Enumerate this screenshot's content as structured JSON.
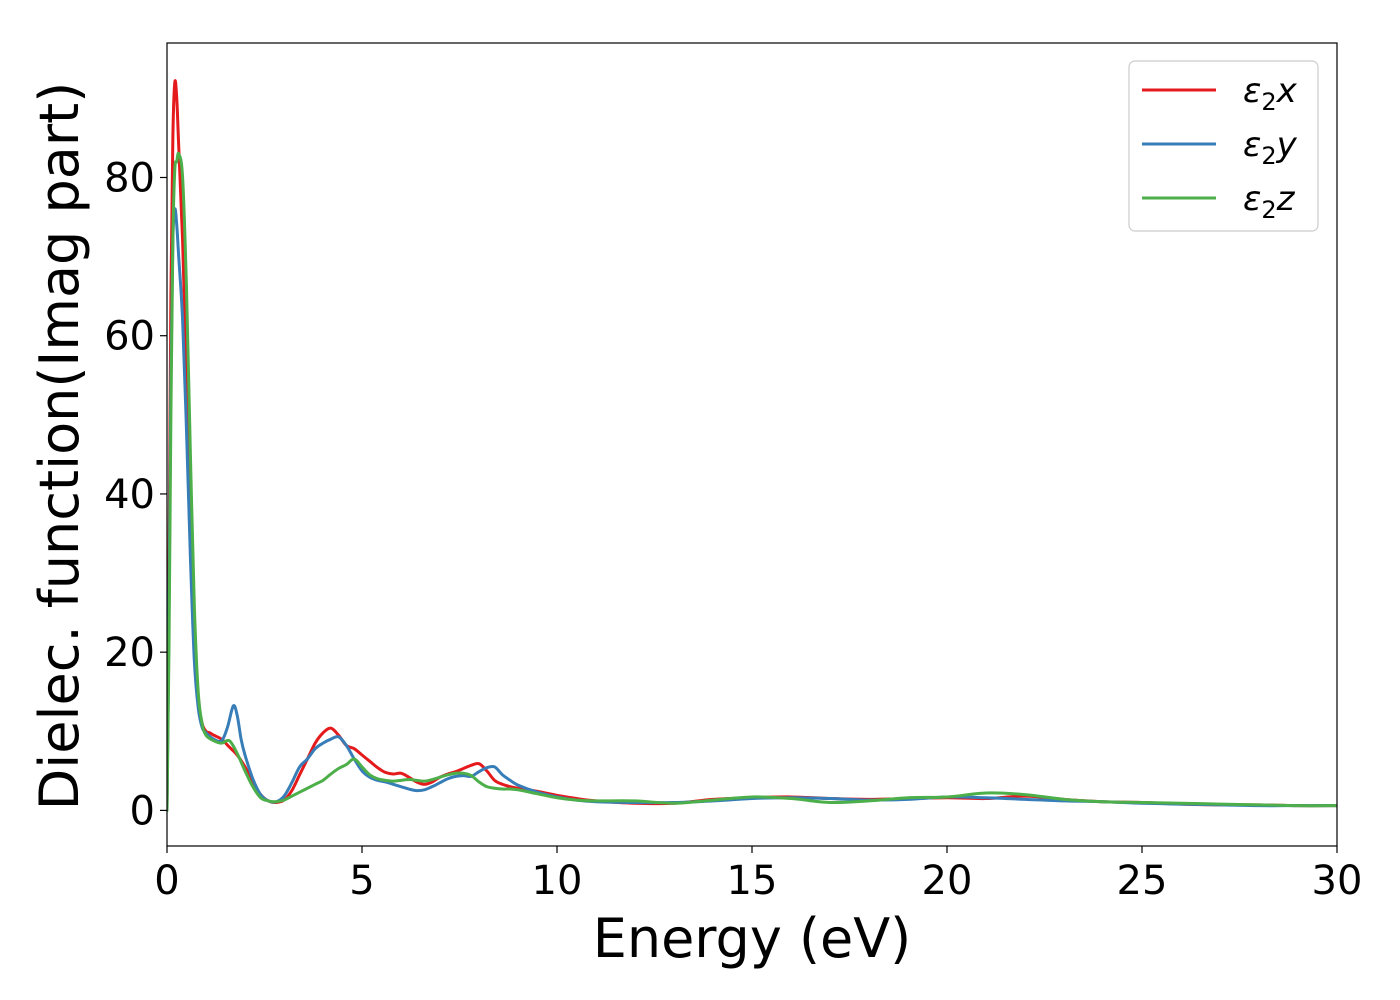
{
  "chart_data": {
    "type": "line",
    "title": "",
    "xlabel": "Energy (eV)",
    "ylabel": "Dielec. function(Imag part)",
    "xlim": [
      0,
      30
    ],
    "ylim": [
      -4.5,
      97
    ],
    "xticks": [
      0,
      5,
      10,
      15,
      20,
      25,
      30
    ],
    "yticks": [
      0,
      20,
      40,
      60,
      80
    ],
    "grid": false,
    "legend_position": "top-right",
    "series": [
      {
        "name": "ε2x",
        "symbol": "ε",
        "sub": "2",
        "axis": "x",
        "color": "#e41a1c",
        "x": [
          0,
          0.05,
          0.1,
          0.15,
          0.2,
          0.25,
          0.3,
          0.4,
          0.5,
          0.6,
          0.7,
          0.8,
          0.9,
          1.0,
          1.1,
          1.2,
          1.4,
          1.6,
          1.8,
          2.0,
          2.2,
          2.4,
          2.6,
          2.8,
          3.0,
          3.2,
          3.4,
          3.6,
          3.8,
          4.0,
          4.2,
          4.4,
          4.6,
          4.8,
          5.0,
          5.2,
          5.4,
          5.6,
          5.8,
          6.0,
          6.2,
          6.4,
          6.6,
          6.8,
          7.0,
          7.2,
          7.4,
          7.6,
          7.8,
          8.0,
          8.2,
          8.4,
          8.6,
          8.8,
          9.0,
          9.5,
          10.0,
          10.5,
          11.0,
          12.0,
          13.0,
          14.0,
          15.0,
          16.0,
          17.0,
          18.0,
          19.0,
          20.0,
          21.0,
          22.0,
          23.0,
          24.0,
          25.0,
          26.0,
          27.0,
          28.0,
          29.0,
          30.0
        ],
        "y": [
          0,
          30,
          65,
          85,
          92,
          90,
          84,
          72,
          55,
          36,
          21,
          14,
          11,
          10,
          9.8,
          9.5,
          9.0,
          8.0,
          7.0,
          5.5,
          3.5,
          2.0,
          1.2,
          1.0,
          1.3,
          2.5,
          4.5,
          6.5,
          8.5,
          9.8,
          10.4,
          9.5,
          8.2,
          7.8,
          7.0,
          6.2,
          5.4,
          4.8,
          4.6,
          4.7,
          4.2,
          3.6,
          3.3,
          3.6,
          4.2,
          4.6,
          4.9,
          5.3,
          5.7,
          5.9,
          5.0,
          3.8,
          3.3,
          3.0,
          2.8,
          2.4,
          1.9,
          1.5,
          1.2,
          0.9,
          0.9,
          1.4,
          1.6,
          1.7,
          1.5,
          1.4,
          1.5,
          1.6,
          1.5,
          1.8,
          1.4,
          1.1,
          1.0,
          0.8,
          0.7,
          0.7,
          0.6,
          0.6
        ]
      },
      {
        "name": "ε2y",
        "symbol": "ε",
        "sub": "2",
        "axis": "y",
        "color": "#377eb8",
        "x": [
          0,
          0.05,
          0.1,
          0.15,
          0.2,
          0.25,
          0.3,
          0.4,
          0.5,
          0.6,
          0.7,
          0.8,
          0.9,
          1.0,
          1.2,
          1.4,
          1.55,
          1.7,
          1.8,
          1.9,
          2.0,
          2.2,
          2.4,
          2.6,
          2.8,
          3.0,
          3.2,
          3.4,
          3.6,
          3.8,
          4.0,
          4.2,
          4.4,
          4.6,
          4.8,
          5.0,
          5.2,
          5.4,
          5.6,
          5.8,
          6.0,
          6.2,
          6.4,
          6.6,
          6.8,
          7.0,
          7.2,
          7.4,
          7.6,
          7.8,
          8.0,
          8.2,
          8.4,
          8.6,
          8.8,
          9.0,
          9.5,
          10.0,
          10.5,
          11.0,
          12.0,
          13.0,
          14.0,
          15.0,
          16.0,
          17.0,
          18.0,
          19.0,
          20.0,
          21.0,
          22.0,
          23.0,
          24.0,
          25.0,
          26.0,
          27.0,
          28.0,
          29.0,
          30.0
        ],
        "y": [
          0,
          25,
          55,
          72,
          76,
          74,
          70,
          62,
          48,
          32,
          19,
          13,
          10.5,
          9.8,
          9.0,
          8.8,
          10.5,
          13.2,
          12.0,
          9.0,
          7.0,
          4.0,
          2.0,
          1.2,
          1.1,
          1.8,
          3.5,
          5.5,
          6.5,
          7.8,
          8.5,
          9.0,
          9.3,
          8.2,
          6.5,
          5.0,
          4.2,
          3.8,
          3.6,
          3.3,
          3.0,
          2.7,
          2.5,
          2.6,
          3.0,
          3.5,
          4.0,
          4.3,
          4.4,
          4.3,
          4.9,
          5.4,
          5.5,
          4.5,
          3.8,
          3.2,
          2.3,
          1.7,
          1.3,
          1.1,
          1.0,
          1.0,
          1.2,
          1.5,
          1.6,
          1.5,
          1.3,
          1.4,
          1.7,
          1.6,
          1.4,
          1.2,
          1.1,
          0.9,
          0.8,
          0.7,
          0.6,
          0.6,
          0.6
        ]
      },
      {
        "name": "ε2z",
        "symbol": "ε",
        "sub": "2",
        "axis": "z",
        "color": "#4daf4a",
        "x": [
          0,
          0.05,
          0.1,
          0.15,
          0.2,
          0.25,
          0.3,
          0.4,
          0.5,
          0.6,
          0.7,
          0.8,
          0.9,
          1.0,
          1.2,
          1.4,
          1.6,
          1.8,
          2.0,
          2.2,
          2.4,
          2.6,
          2.8,
          3.0,
          3.2,
          3.4,
          3.6,
          3.8,
          4.0,
          4.2,
          4.4,
          4.6,
          4.8,
          5.0,
          5.2,
          5.4,
          5.6,
          5.8,
          6.0,
          6.2,
          6.4,
          6.6,
          6.8,
          7.0,
          7.2,
          7.4,
          7.6,
          7.8,
          8.0,
          8.2,
          8.4,
          8.6,
          8.8,
          9.0,
          9.5,
          10.0,
          10.5,
          11.0,
          12.0,
          13.0,
          14.0,
          15.0,
          16.0,
          17.0,
          18.0,
          19.0,
          20.0,
          21.0,
          22.0,
          23.0,
          24.0,
          25.0,
          26.0,
          27.0,
          28.0,
          29.0,
          30.0
        ],
        "y": [
          0,
          20,
          50,
          72,
          81,
          82,
          83,
          80,
          66,
          45,
          26,
          15,
          11,
          9.5,
          8.8,
          8.5,
          8.8,
          7.2,
          5.0,
          3.0,
          1.6,
          1.2,
          1.1,
          1.3,
          1.8,
          2.3,
          2.8,
          3.3,
          3.8,
          4.6,
          5.3,
          5.8,
          6.5,
          5.5,
          4.5,
          4.0,
          3.8,
          3.7,
          3.8,
          3.9,
          3.8,
          3.7,
          3.9,
          4.2,
          4.5,
          4.7,
          4.7,
          4.4,
          3.6,
          3.0,
          2.8,
          2.7,
          2.7,
          2.6,
          2.1,
          1.6,
          1.3,
          1.2,
          1.2,
          0.9,
          1.3,
          1.7,
          1.5,
          1.0,
          1.2,
          1.6,
          1.7,
          2.2,
          2.0,
          1.4,
          1.1,
          1.0,
          0.9,
          0.8,
          0.7,
          0.6,
          0.6
        ]
      }
    ]
  }
}
